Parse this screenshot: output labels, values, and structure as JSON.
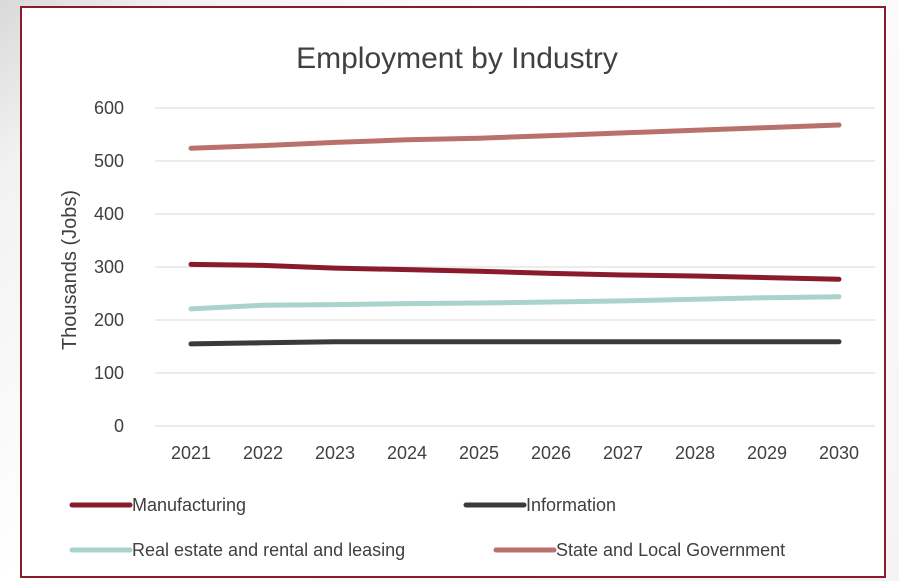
{
  "chart_data": {
    "type": "line",
    "title": "Employment by Industry",
    "xlabel": "",
    "ylabel": "Thousands (Jobs)",
    "ylim": [
      0,
      600
    ],
    "yticks": [
      0,
      100,
      200,
      300,
      400,
      500,
      600
    ],
    "categories": [
      "2021",
      "2022",
      "2023",
      "2024",
      "2025",
      "2026",
      "2027",
      "2028",
      "2029",
      "2030"
    ],
    "grid": true,
    "legend_position": "bottom",
    "series": [
      {
        "name": "Manufacturing",
        "color": "#8b1a2b",
        "values": [
          305,
          303,
          298,
          295,
          292,
          288,
          285,
          283,
          280,
          277
        ]
      },
      {
        "name": "Information",
        "color": "#3a3a3a",
        "values": [
          155,
          157,
          159,
          159,
          159,
          159,
          159,
          159,
          159,
          159
        ]
      },
      {
        "name": "Real estate and rental and leasing",
        "color": "#a9d3cc",
        "values": [
          221,
          228,
          229,
          231,
          232,
          234,
          236,
          239,
          242,
          244
        ]
      },
      {
        "name": "State and Local Government",
        "color": "#b9726b",
        "values": [
          524,
          529,
          535,
          540,
          543,
          548,
          553,
          558,
          563,
          568
        ]
      }
    ]
  }
}
